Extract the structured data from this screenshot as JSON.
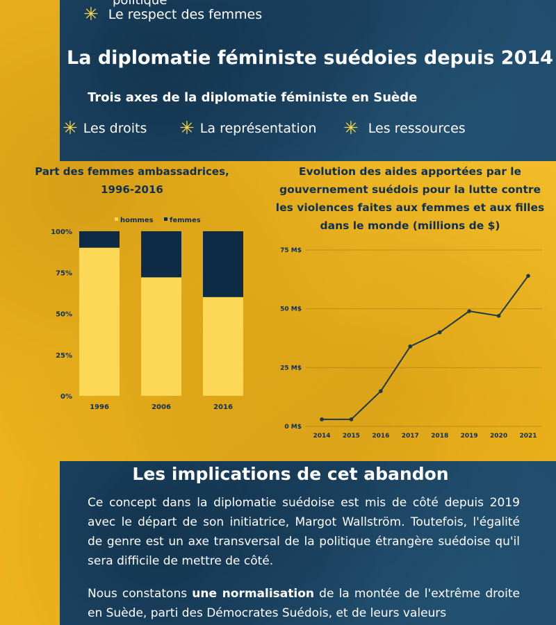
{
  "top": {
    "partial_line": "politique",
    "respect": "Le respect des femmes",
    "main_title": "La diplomatie féministe suédoies depuis 2014",
    "axes_title": "Trois axes de la diplomatie féministe en Suède",
    "axes": [
      "Les droits",
      "La représentation",
      "Les ressources"
    ],
    "star_icon": "sparkle-star-icon",
    "star_glyph": "✳",
    "colors": {
      "panel": "#1f4a6b",
      "star": "#f7d84a",
      "background": "#efb41c"
    }
  },
  "chart_data": [
    {
      "type": "bar",
      "stacked": true,
      "title": "Part des femmes ambassadrices, 1996-2016",
      "categories": [
        "1996",
        "2006",
        "2016"
      ],
      "series": [
        {
          "name": "hommes",
          "color": "#fcd856",
          "values": [
            90,
            72,
            60
          ]
        },
        {
          "name": "femmes",
          "color": "#0d2b45",
          "values": [
            10,
            28,
            40
          ]
        }
      ],
      "yticks": [
        "0%",
        "25%",
        "50%",
        "75%",
        "100%"
      ],
      "ylim": [
        0,
        100
      ],
      "legend": "top",
      "grid": false
    },
    {
      "type": "line",
      "title": "Evolution des aides apportées par le gouvernement suédois pour la lutte contre les violences faites aux femmes et aux filles dans le monde (millions de $)",
      "x": [
        "2014",
        "2015",
        "2016",
        "2017",
        "2018",
        "2019",
        "2020",
        "2021"
      ],
      "y": [
        3,
        3,
        15,
        34,
        40,
        49,
        47,
        64
      ],
      "yticks": [
        "0 M$",
        "25 M$",
        "50 M$",
        "75 M$"
      ],
      "ylim": [
        0,
        75
      ],
      "color": "#1a3a4a",
      "grid": true,
      "legend": "none"
    }
  ],
  "bottom": {
    "title": "Les implications de cet abandon",
    "para1": "Ce concept dans la diplomatie suédoise est mis de côté depuis 2019 avec le départ de son initiatrice, Margot Wallström. Toutefois, l'égalité de genre est un axe transversal de la politique étrangère suédoise qu'il sera difficile de mettre de côté.",
    "para2_start": "Nous constatons ",
    "para2_bold": "une normalisation",
    "para2_end": " de la montée de l'extrême droite en Suède, parti des Démocrates Suédois, et de leurs valeurs"
  }
}
